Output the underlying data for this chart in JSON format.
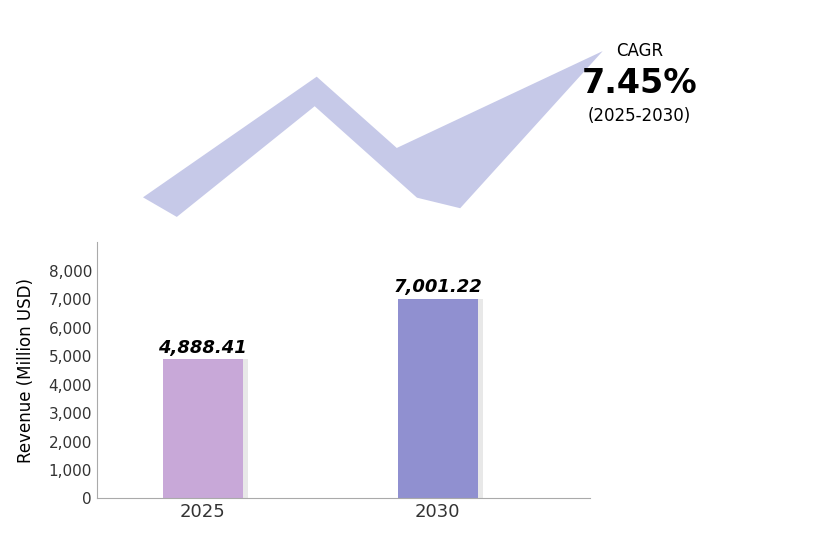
{
  "categories": [
    "2025",
    "2030"
  ],
  "values": [
    4888.41,
    7001.22
  ],
  "bar_colors": [
    "#C8A8D8",
    "#9090D0"
  ],
  "bar_labels": [
    "4,888.41",
    "7,001.22"
  ],
  "ylabel": "Revenue (Million USD)",
  "ylim": [
    0,
    9000
  ],
  "yticks": [
    0,
    1000,
    2000,
    3000,
    4000,
    5000,
    6000,
    7000,
    8000
  ],
  "cagr_label": "CAGR",
  "cagr_value": "7.45%",
  "cagr_period": "(2025-2030)",
  "arrow_color": "#B0B4E0",
  "background_color": "#FFFFFF"
}
